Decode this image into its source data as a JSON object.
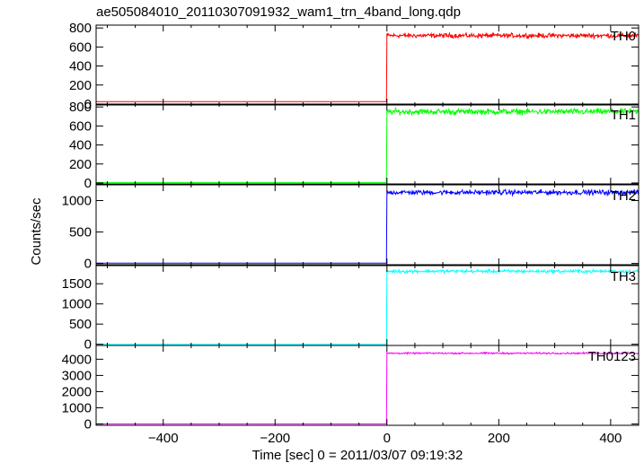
{
  "chart_title": "ae505084010_20110307091932_wam1_trn_4band_long.qdp",
  "xlabel": "Time [sec] 0 = 2011/03/07 09:19:32",
  "ylabel": "Counts/sec",
  "chart_data": {
    "type": "line",
    "title": "ae505084010_20110307091932_wam1_trn_4band_long.qdp",
    "xlabel": "Time [sec] 0 = 2011/03/07 09:19:32",
    "ylabel": "Counts/sec",
    "xlim": [
      -520,
      450
    ],
    "x_ticks": [
      -400,
      -200,
      0,
      200,
      400
    ],
    "x_tick_labels": [
      "−400",
      "−200",
      "0",
      "200",
      "400"
    ],
    "step_time": 0,
    "panels": [
      {
        "name": "TH0",
        "color": "#ff0000",
        "ylim": [
          -10,
          830
        ],
        "ticks": [
          0,
          200,
          400,
          600,
          800
        ],
        "pre_level": 25,
        "post_level": 720,
        "noise": 22
      },
      {
        "name": "TH1",
        "color": "#00ff00",
        "ylim": [
          -10,
          830
        ],
        "ticks": [
          0,
          200,
          400,
          600,
          800
        ],
        "pre_level": 5,
        "post_level": 750,
        "noise": 28
      },
      {
        "name": "TH2",
        "color": "#0000ff",
        "ylim": [
          -20,
          1250
        ],
        "ticks": [
          0,
          500,
          1000
        ],
        "pre_level": 5,
        "post_level": 1130,
        "noise": 35
      },
      {
        "name": "TH3",
        "color": "#00ffff",
        "ylim": [
          -30,
          1950
        ],
        "ticks": [
          0,
          500,
          1000,
          1500
        ],
        "pre_level": 0,
        "post_level": 1810,
        "noise": 35
      },
      {
        "name": "TH0123",
        "color": "#ff00ff",
        "ylim": [
          -80,
          4850
        ],
        "ticks": [
          0,
          1000,
          2000,
          3000,
          4000
        ],
        "pre_level": 10,
        "post_level": 4370,
        "noise": 45
      }
    ]
  }
}
